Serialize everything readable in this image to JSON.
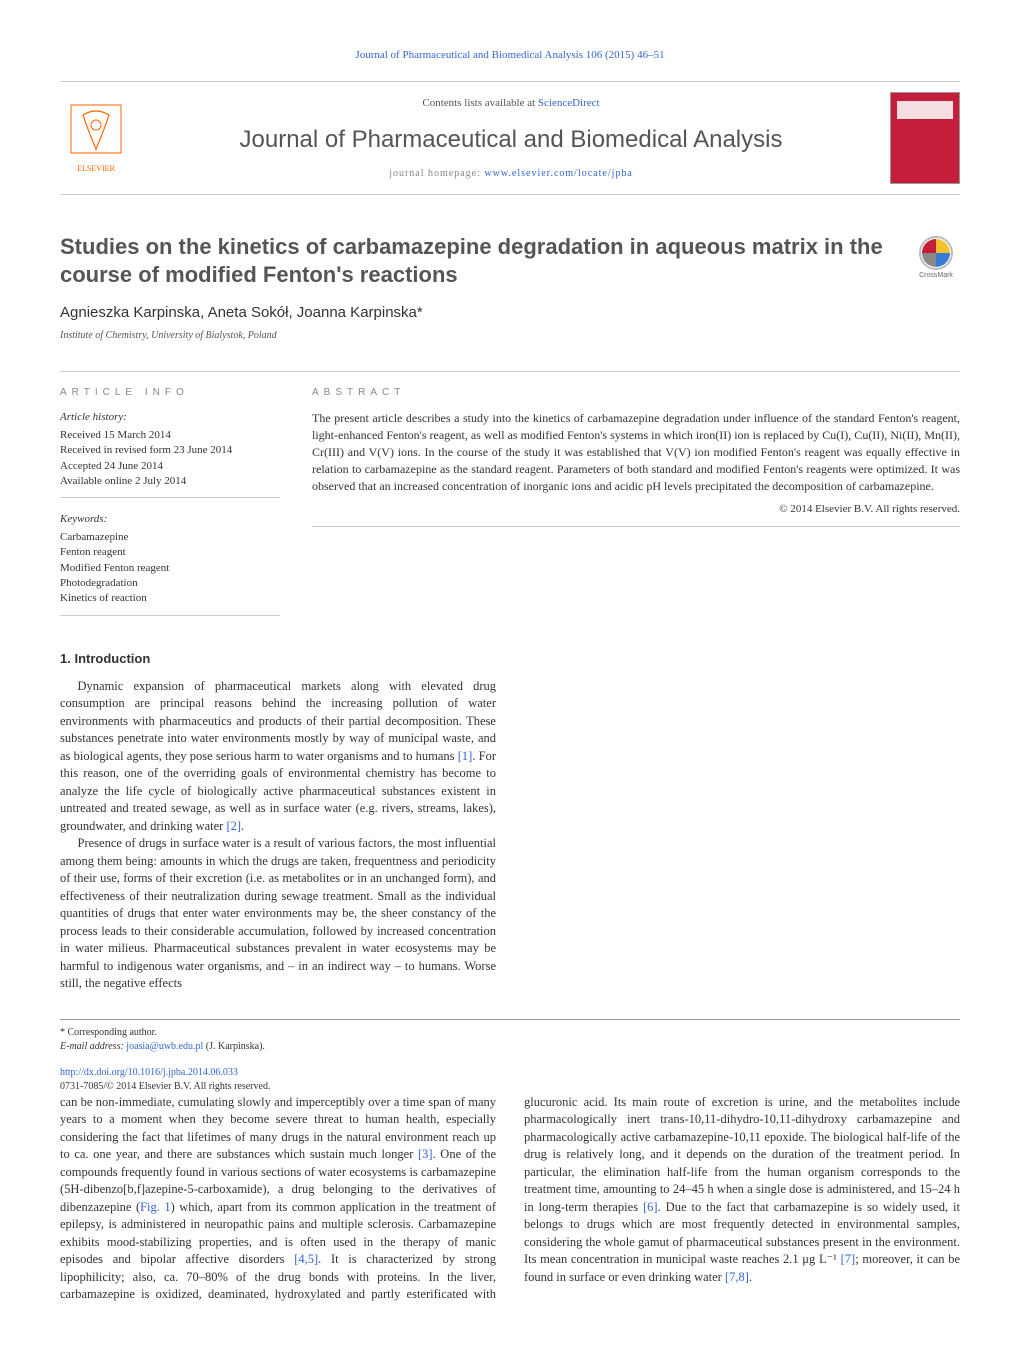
{
  "running_head": "Journal of Pharmaceutical and Biomedical Analysis 106 (2015) 46–51",
  "masthead": {
    "contents_prefix": "Contents lists available at ",
    "contents_link": "ScienceDirect",
    "journal": "Journal of Pharmaceutical and Biomedical Analysis",
    "homepage_prefix": "journal homepage: ",
    "homepage_link": "www.elsevier.com/locate/jpba",
    "publisher": "ELSEVIER"
  },
  "colors": {
    "link": "#3366cc",
    "accent": "#ff6600",
    "cover": "#c41e3a",
    "text": "#333333",
    "muted": "#888888",
    "rule": "#cccccc"
  },
  "title": "Studies on the kinetics of carbamazepine degradation in aqueous matrix in the course of modified Fenton's reactions",
  "authors": "Agnieszka Karpinska, Aneta Sokół, Joanna Karpinska",
  "corr_mark": "*",
  "affiliation": "Institute of Chemistry, University of Bialystok, Poland",
  "article_info": {
    "heading": "ARTICLE INFO",
    "history_label": "Article history:",
    "history": [
      "Received 15 March 2014",
      "Received in revised form 23 June 2014",
      "Accepted 24 June 2014",
      "Available online 2 July 2014"
    ],
    "keywords_label": "Keywords:",
    "keywords": [
      "Carbamazepine",
      "Fenton reagent",
      "Modified Fenton reagent",
      "Photodegradation",
      "Kinetics of reaction"
    ]
  },
  "abstract": {
    "heading": "ABSTRACT",
    "text": "The present article describes a study into the kinetics of carbamazepine degradation under influence of the standard Fenton's reagent, light-enhanced Fenton's reagent, as well as modified Fenton's systems in which iron(II) ion is replaced by Cu(I), Cu(II), Ni(II), Mn(II), Cr(III) and V(V) ions. In the course of the study it was established that V(V) ion modified Fenton's reagent was equally effective in relation to carbamazepine as the standard reagent. Parameters of both standard and modified Fenton's reagents were optimized. It was observed that an increased concentration of inorganic ions and acidic pH levels precipitated the decomposition of carbamazepine.",
    "copyright": "© 2014 Elsevier B.V. All rights reserved."
  },
  "body": {
    "section_heading": "1.  Introduction",
    "p1": "Dynamic expansion of pharmaceutical markets along with elevated drug consumption are principal reasons behind the increasing pollution of water environments with pharmaceutics and products of their partial decomposition. These substances penetrate into water environments mostly by way of municipal waste, and as biological agents, they pose serious harm to water organisms and to humans [1]. For this reason, one of the overriding goals of environmental chemistry has become to analyze the life cycle of biologically active pharmaceutical substances existent in untreated and treated sewage, as well as in surface water (e.g. rivers, streams, lakes), groundwater, and drinking water [2].",
    "p2": "Presence of drugs in surface water is a result of various factors, the most influential among them being: amounts in which the drugs are taken, frequentness and periodicity of their use, forms of their excretion (i.e. as metabolites or in an unchanged form), and effectiveness of their neutralization during sewage treatment. Small as the individual quantities of drugs that enter water environments may be, the sheer constancy of the process leads to their considerable accumulation, followed by increased concentration in water milieus. Pharmaceutical substances prevalent in water ecosystems may be harmful to indigenous water organisms, and – in an indirect way – to humans. Worse still, the negative effects",
    "p3": "can be non-immediate, cumulating slowly and imperceptibly over a time span of many years to a moment when they become severe threat to human health, especially considering the fact that lifetimes of many drugs in the natural environment reach up to ca. one year, and there are substances which sustain much longer [3]. One of the compounds frequently found in various sections of water ecosystems is carbamazepine (5H-dibenzo[b,f]azepine-5-carboxamide), a drug belonging to the derivatives of dibenzazepine (Fig. 1) which, apart from its common application in the treatment of epilepsy, is administered in neuropathic pains and multiple sclerosis. Carbamazepine exhibits mood-stabilizing properties, and is often used in the therapy of manic episodes and bipolar affective disorders [4,5]. It is characterized by strong lipophilicity; also, ca. 70–80% of the drug bonds with proteins. In the liver, carbamazepine is oxidized, deaminated, hydroxylated and partly esterificated with glucuronic acid. Its main route of excretion is urine, and the metabolites include pharmacologically inert trans-10,11-dihydro-10,11-dihydroxy carbamazepine and pharmacologically active carbamazepine-10,11 epoxide. The biological half-life of the drug is relatively long, and it depends on the duration of the treatment period. In particular, the elimination half-life from the human organism corresponds to the treatment time, amounting to 24–45 h when a single dose is administered, and 15–24 h in long-term therapies [6]. Due to the fact that carbamazepine is so widely used, it belongs to drugs which are most frequently detected in environmental samples, considering the whole gamut of pharmaceutical substances present in the environment. Its mean concentration in municipal waste reaches 2.1 μg L⁻¹ [7]; moreover, it can be found in surface or even drinking water [7,8]."
  },
  "footer": {
    "corr_label": "* Corresponding author.",
    "email_label": "E-mail address: ",
    "email": "joasia@uwb.edu.pl",
    "email_person": " (J. Karpinska).",
    "doi": "http://dx.doi.org/10.1016/j.jpba.2014.06.033",
    "issn_copyright": "0731-7085/© 2014 Elsevier B.V. All rights reserved."
  },
  "crossmark_label": "CrossMark"
}
